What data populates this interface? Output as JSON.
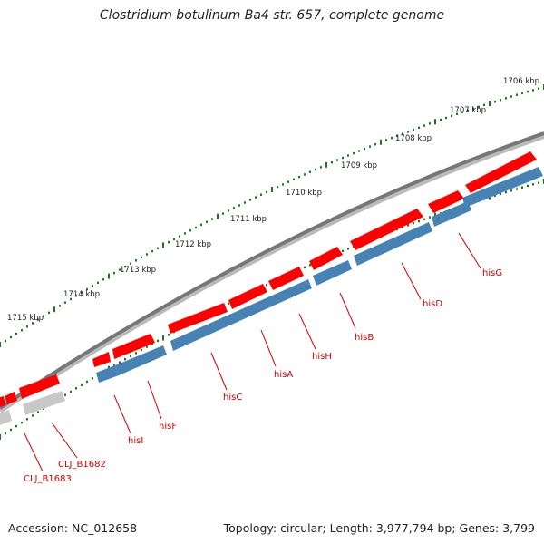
{
  "title": "Clostridium botulinum Ba4 str. 657, complete genome",
  "footer": {
    "accession": "Accession: NC_012658",
    "summary": "Topology: circular; Length: 3,977,794 bp; Genes: 3,799"
  },
  "colors": {
    "forward": "#ff0000",
    "reverse": "#4682b4",
    "other": "#c8c8c8",
    "backbone": "#777777",
    "ticks": "#1a7a1a",
    "label": "#cc0000"
  },
  "ticks": [
    "1706 kbp",
    "1707 kbp",
    "1708 kbp",
    "1709 kbp",
    "1710 kbp",
    "1711 kbp",
    "1712 kbp",
    "1713 kbp",
    "1714 kbp",
    "1715 kbp"
  ],
  "genes": [
    {
      "name": "hisG",
      "strand": "forward"
    },
    {
      "name": "hisD",
      "strand": "forward"
    },
    {
      "name": "hisB",
      "strand": "forward"
    },
    {
      "name": "hisH",
      "strand": "forward"
    },
    {
      "name": "hisA",
      "strand": "forward"
    },
    {
      "name": "hisC",
      "strand": "forward"
    },
    {
      "name": "hisF",
      "strand": "forward"
    },
    {
      "name": "hisI",
      "strand": "forward"
    },
    {
      "name": "CLJ_B1682",
      "strand": "forward"
    },
    {
      "name": "CLJ_B1683",
      "strand": "forward"
    }
  ]
}
